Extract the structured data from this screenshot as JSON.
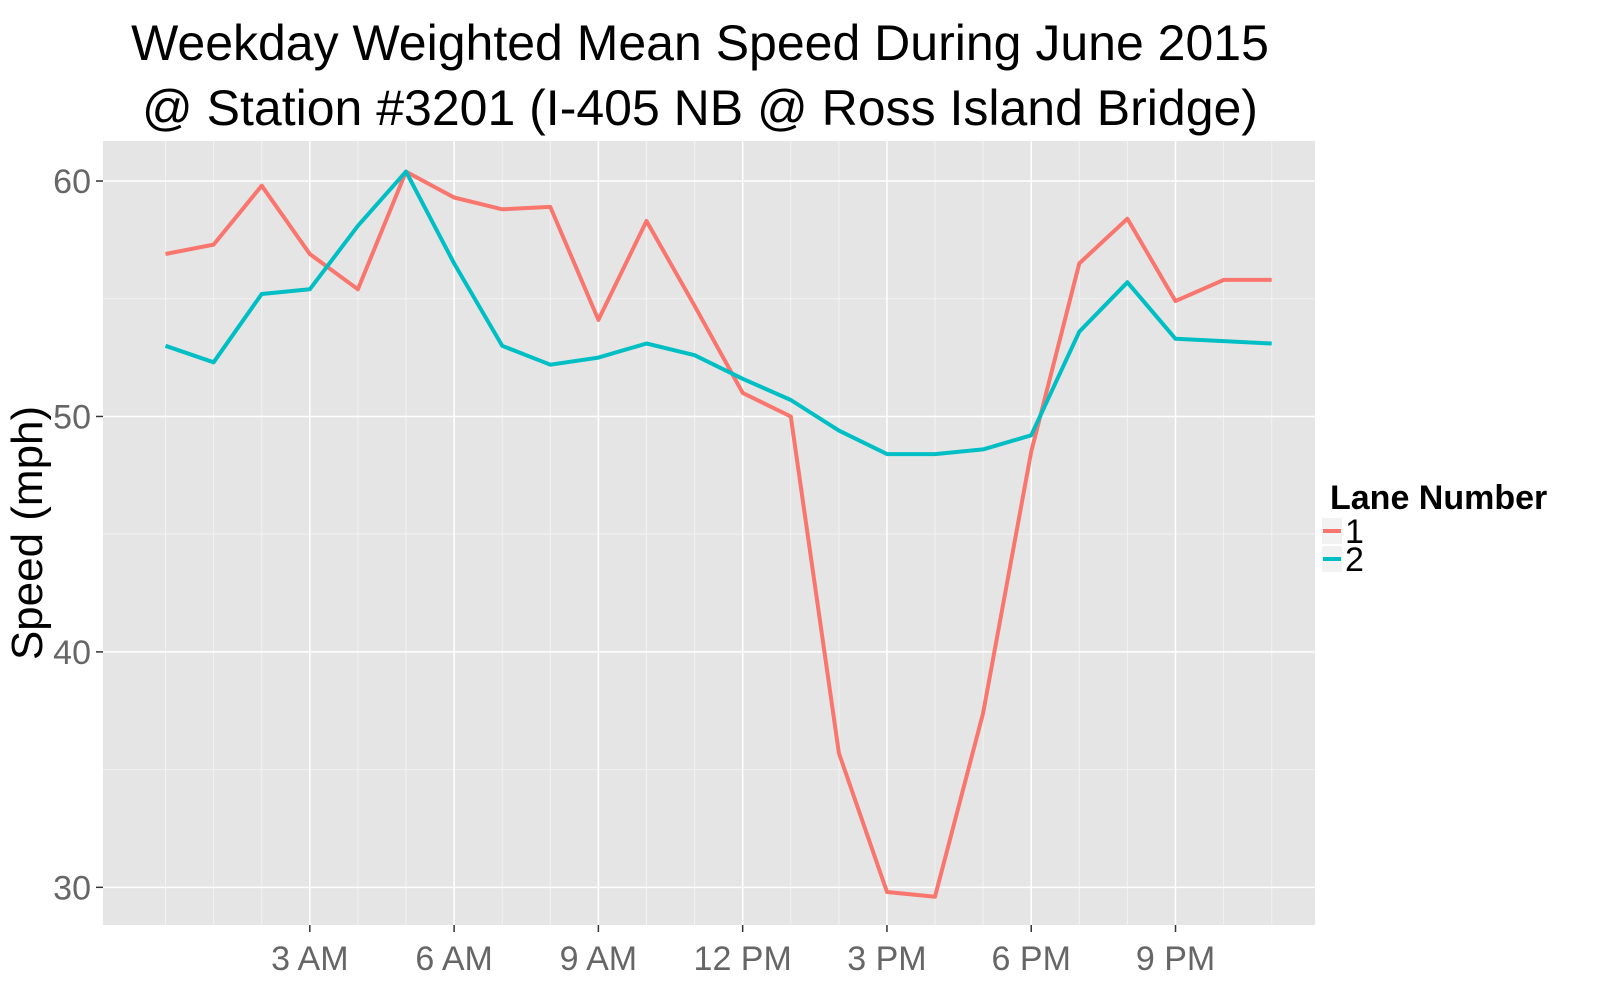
{
  "chart_data": {
    "type": "line",
    "title_line1": "Weekday Weighted Mean Speed During June 2015",
    "title_line2": "@ Station #3201 (I-405 NB @ Ross Island Bridge)",
    "xlabel": "",
    "ylabel": "Speed (mph)",
    "xlim": [
      -1.3,
      23.9
    ],
    "ylim": [
      28.4,
      61.7
    ],
    "x_ticks": [
      {
        "value": 3,
        "label": "3 AM"
      },
      {
        "value": 6,
        "label": "6 AM"
      },
      {
        "value": 9,
        "label": "9 AM"
      },
      {
        "value": 12,
        "label": "12 PM"
      },
      {
        "value": 15,
        "label": "3 PM"
      },
      {
        "value": 18,
        "label": "6 PM"
      },
      {
        "value": 21,
        "label": "9 PM"
      }
    ],
    "y_ticks": [
      {
        "value": 30,
        "label": "30"
      },
      {
        "value": 40,
        "label": "40"
      },
      {
        "value": 50,
        "label": "50"
      },
      {
        "value": 60,
        "label": "60"
      }
    ],
    "x": [
      0,
      1,
      2,
      3,
      4,
      5,
      6,
      7,
      8,
      9,
      10,
      11,
      12,
      13,
      14,
      15,
      16,
      17,
      18,
      19,
      20,
      21,
      22,
      23
    ],
    "series": [
      {
        "name": "1",
        "color": "#F8766D",
        "values": [
          56.9,
          57.3,
          59.8,
          56.9,
          55.4,
          60.4,
          59.3,
          58.8,
          58.9,
          54.1,
          58.3,
          54.7,
          51.0,
          50.0,
          35.7,
          29.8,
          29.6,
          37.4,
          48.5,
          56.5,
          58.4,
          54.9,
          55.8,
          55.8
        ]
      },
      {
        "name": "2",
        "color": "#00BFC4",
        "values": [
          53.0,
          52.3,
          55.2,
          55.4,
          58.1,
          60.4,
          56.5,
          53.0,
          52.2,
          52.5,
          53.1,
          52.6,
          51.6,
          50.7,
          49.4,
          48.4,
          48.4,
          48.6,
          49.2,
          53.6,
          55.7,
          53.3,
          53.2,
          53.1
        ]
      }
    ],
    "legend": {
      "title": "Lane Number",
      "position": "right"
    },
    "grid": true,
    "panel_background": "#E5E5E5"
  }
}
